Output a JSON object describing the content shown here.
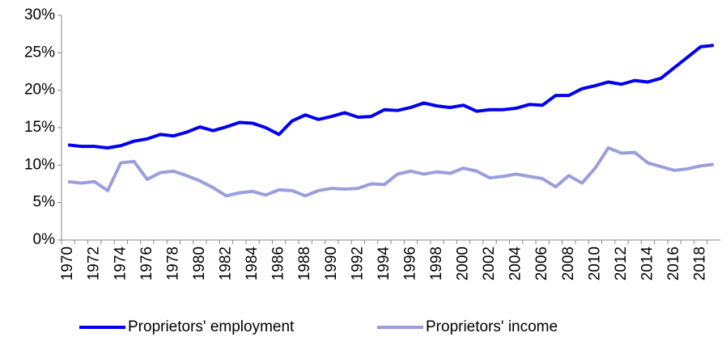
{
  "chart_data": {
    "type": "line",
    "categories": [
      "1970",
      null,
      "1972",
      null,
      "1974",
      null,
      "1976",
      null,
      "1978",
      null,
      "1980",
      null,
      "1982",
      null,
      "1984",
      null,
      "1986",
      null,
      "1988",
      null,
      "1990",
      null,
      "1992",
      null,
      "1994",
      null,
      "1996",
      null,
      "1998",
      null,
      "2000",
      null,
      "2002",
      null,
      "2004",
      null,
      "2006",
      null,
      "2008",
      null,
      "2010",
      null,
      "2012",
      null,
      "2014",
      null,
      "2016",
      null,
      "2018",
      null
    ],
    "series": [
      {
        "name": "Proprietors' employment",
        "color": "#0000ee",
        "values": [
          12.7,
          12.5,
          12.5,
          12.3,
          12.6,
          13.2,
          13.5,
          14.1,
          13.9,
          14.4,
          15.1,
          14.6,
          15.1,
          15.7,
          15.6,
          15.0,
          14.1,
          15.9,
          16.7,
          16.1,
          16.5,
          17.0,
          16.4,
          16.5,
          17.4,
          17.3,
          17.7,
          18.3,
          17.9,
          17.7,
          18.0,
          17.2,
          17.4,
          17.4,
          17.6,
          18.1,
          18.0,
          19.3,
          19.3,
          20.2,
          20.6,
          21.1,
          20.8,
          21.3,
          21.1,
          21.6,
          23.0,
          24.4,
          25.8,
          26.0
        ]
      },
      {
        "name": "Proprietors' income",
        "color": "#9a9fdc",
        "values": [
          7.8,
          7.6,
          7.8,
          6.6,
          10.3,
          10.5,
          8.1,
          9.0,
          9.2,
          8.6,
          7.9,
          7.0,
          5.9,
          6.3,
          6.5,
          6.0,
          6.7,
          6.6,
          5.9,
          6.6,
          6.9,
          6.8,
          6.9,
          7.5,
          7.4,
          8.8,
          9.2,
          8.8,
          9.1,
          8.9,
          9.6,
          9.2,
          8.3,
          8.5,
          8.8,
          8.5,
          8.2,
          7.1,
          8.6,
          7.6,
          9.6,
          12.3,
          11.6,
          11.7,
          10.3,
          9.8,
          9.3,
          9.5,
          9.9,
          10.1
        ]
      }
    ],
    "ylim": [
      0,
      30
    ],
    "yticks": [
      {
        "value": 0,
        "label": "0%"
      },
      {
        "value": 5,
        "label": "5%"
      },
      {
        "value": 10,
        "label": "10%"
      },
      {
        "value": 15,
        "label": "15%"
      },
      {
        "value": 20,
        "label": "20%"
      },
      {
        "value": 25,
        "label": "25%"
      },
      {
        "value": 30,
        "label": "30%"
      }
    ],
    "grid": false,
    "legend": "bottom"
  }
}
